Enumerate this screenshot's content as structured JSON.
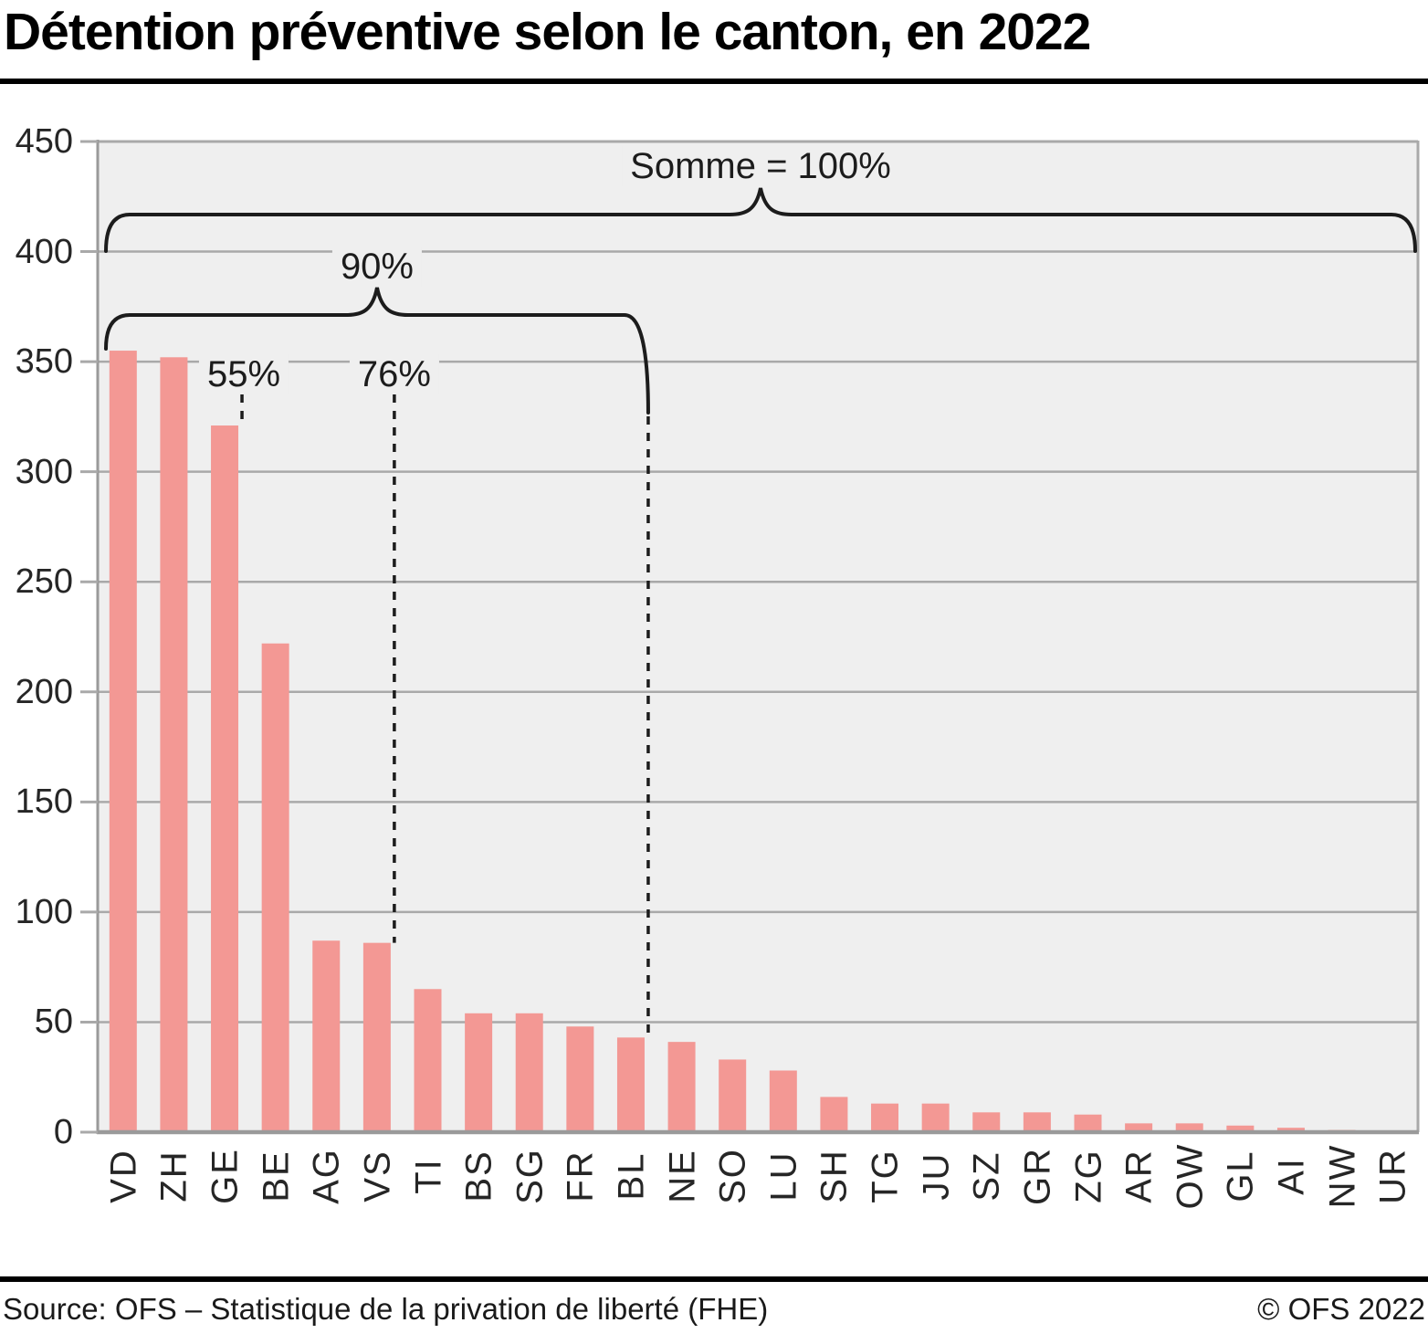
{
  "header": {
    "title": "Détention préventive selon le canton, en 2022"
  },
  "footer": {
    "source": "Source: OFS – Statistique de la privation de liberté (FHE)",
    "copyright": "© OFS 2022"
  },
  "chart_data": {
    "type": "bar",
    "title": "Détention préventive selon le canton, en 2022",
    "categories": [
      "VD",
      "ZH",
      "GE",
      "BE",
      "AG",
      "VS",
      "TI",
      "BS",
      "SG",
      "FR",
      "BL",
      "NE",
      "SO",
      "LU",
      "SH",
      "TG",
      "JU",
      "SZ",
      "GR",
      "ZG",
      "AR",
      "OW",
      "GL",
      "AI",
      "NW",
      "UR"
    ],
    "values": [
      355,
      352,
      321,
      222,
      87,
      86,
      65,
      54,
      54,
      48,
      43,
      41,
      33,
      28,
      16,
      13,
      13,
      9,
      9,
      8,
      4,
      4,
      3,
      2,
      1,
      0
    ],
    "xlabel": "",
    "ylabel": "",
    "ylim": [
      0,
      450
    ],
    "yticks": [
      450,
      400,
      350,
      300,
      250,
      200,
      150,
      100,
      50,
      0
    ],
    "grid": true,
    "legend": "none",
    "colors": {
      "bar": "#f39894",
      "plot_background": "#efefef",
      "gridline": "#a9a9a9",
      "axis": "#9a9a9a",
      "annotation_ink": "#1c1c1c"
    },
    "annotations": {
      "sum_brace": {
        "label": "Somme = 100%",
        "from_canton": "VD",
        "to_canton": "UR"
      },
      "brace_90": {
        "label": "90%",
        "from_canton": "VD",
        "to_canton": "BL"
      },
      "markers": [
        {
          "label": "55%",
          "through_canton": "GE"
        },
        {
          "label": "76%",
          "through_canton": "VS"
        }
      ]
    }
  }
}
